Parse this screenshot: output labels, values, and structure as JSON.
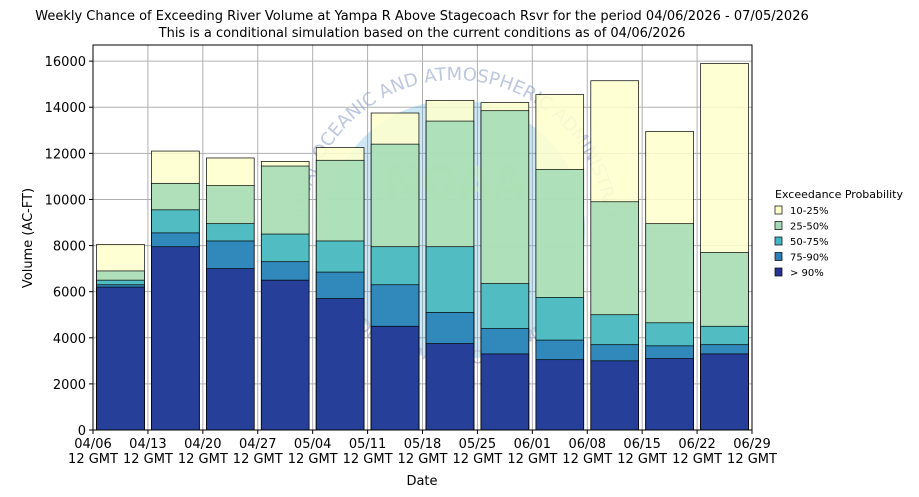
{
  "chart_data": {
    "type": "overlap_bar",
    "title": "Weekly Chance of Exceeding River Volume at Yampa R Above Stagecoach Rsvr for the period 04/06/2026 - 07/05/2026",
    "subtitle": "This is a conditional simulation based on the current conditions as of 04/06/2026",
    "x_label": "Date",
    "y_label": "Volume (AC-FT)",
    "xticks": [
      "04/06 12 GMT",
      "04/13 12 GMT",
      "04/20 12 GMT",
      "04/27 12 GMT",
      "05/04 12 GMT",
      "05/11 12 GMT",
      "05/18 12 GMT",
      "05/25 12 GMT",
      "06/01 12 GMT",
      "06/08 12 GMT",
      "06/15 12 GMT",
      "06/22 12 GMT",
      "06/29 12 GMT"
    ],
    "ylim": [
      0,
      16700
    ],
    "yticks": [
      0,
      2000,
      4000,
      6000,
      8000,
      10000,
      12000,
      14000,
      16000
    ],
    "grid": true,
    "legend_title": "Exceedance Probability",
    "legend_position": "right",
    "series": [
      {
        "name": "10-25%",
        "color": "#ffffcc",
        "values": [
          8050,
          12100,
          11800,
          11650,
          12250,
          13750,
          14300,
          14200,
          14550,
          15150,
          12950,
          15900
        ]
      },
      {
        "name": "25-50%",
        "color": "#a1dab4",
        "values": [
          6900,
          10700,
          10600,
          11450,
          11700,
          12400,
          13400,
          13850,
          11300,
          9900,
          8950,
          7700
        ]
      },
      {
        "name": "50-75%",
        "color": "#41b6c4",
        "values": [
          6500,
          9550,
          8950,
          8500,
          8200,
          7950,
          7950,
          6350,
          5750,
          5000,
          4650,
          4500
        ]
      },
      {
        "name": "75-90%",
        "color": "#2c7fb8",
        "values": [
          6300,
          8550,
          8200,
          7300,
          6850,
          6300,
          5100,
          4400,
          3900,
          3700,
          3650,
          3700
        ]
      },
      {
        "name": "> 90%",
        "color": "#253494",
        "values": [
          6200,
          7950,
          7000,
          6500,
          5700,
          4500,
          3750,
          3300,
          3050,
          3000,
          3100,
          3300
        ]
      }
    ],
    "watermark": {
      "logo": "NOAA",
      "top_text": "NATIONAL OCEANIC AND ATMOSPHERIC ADMINISTRATION",
      "bottom_text": "U.S. DEPARTMENT OF COMMERCE"
    }
  }
}
